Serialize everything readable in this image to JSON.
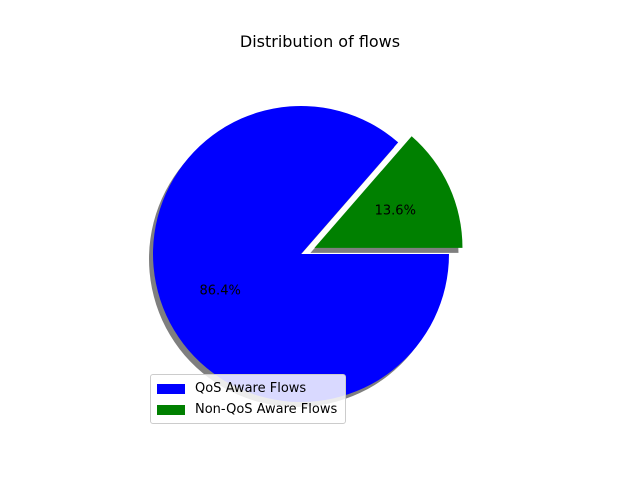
{
  "chart_data": {
    "type": "pie",
    "title": "Distribution of flows",
    "slices": [
      {
        "label": "QoS Aware Flows",
        "value": 86.4,
        "pct_label": "86.4%",
        "color": "#0000ff",
        "explode": false
      },
      {
        "label": "Non-QoS Aware Flows",
        "value": 13.6,
        "pct_label": "13.6%",
        "color": "#008000",
        "explode": true
      }
    ],
    "shadow": true,
    "legend_position": "lower-left"
  }
}
